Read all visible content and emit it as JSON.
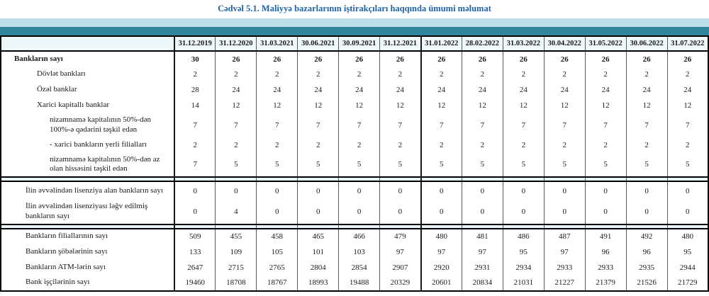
{
  "title": "Cədvəl 5.1. Maliyyə bazarlarının iştirakçıları haqqında ümumi məlumat",
  "colors": {
    "title_blue": "#2264a8",
    "band_light": "#bcdee8",
    "band_teal": "#31859c",
    "separator_band": "#e9f4f8"
  },
  "table": {
    "date_columns": [
      "31.12.2019",
      "31.12.2020",
      "31.03.2021",
      "30.06.2021",
      "30.09.2021",
      "31.12.2021",
      "31.01.2022",
      "28.02.2022",
      "31.03.2022",
      "30.04.2022",
      "31.05.2022",
      "30.06.2022",
      "31.07.2022"
    ],
    "rows": [
      {
        "label": "Bankların sayı",
        "indent": 0,
        "bold": true,
        "values": [
          "30",
          "26",
          "26",
          "26",
          "26",
          "26",
          "26",
          "26",
          "26",
          "26",
          "26",
          "26",
          "26"
        ]
      },
      {
        "label": "Dövlət bankları",
        "indent": 2,
        "values": [
          "2",
          "2",
          "2",
          "2",
          "2",
          "2",
          "2",
          "2",
          "2",
          "2",
          "2",
          "2",
          "2"
        ]
      },
      {
        "label": "Özəl banklar",
        "indent": 2,
        "values": [
          "28",
          "24",
          "24",
          "24",
          "24",
          "24",
          "24",
          "24",
          "24",
          "24",
          "24",
          "24",
          "24"
        ]
      },
      {
        "label": "Xarici kapitallı banklar",
        "indent": 2,
        "values": [
          "14",
          "12",
          "12",
          "12",
          "12",
          "12",
          "12",
          "12",
          "12",
          "12",
          "12",
          "12",
          "12"
        ]
      },
      {
        "label": "nizamnamə kapitalının 50%-dən 100%-ə qədərini təşkil edən",
        "indent": 3,
        "values": [
          "7",
          "7",
          "7",
          "7",
          "7",
          "7",
          "7",
          "7",
          "7",
          "7",
          "7",
          "7",
          "7"
        ]
      },
      {
        "label": "-  xarici bankların yerli filialları",
        "indent": 3,
        "values": [
          "2",
          "2",
          "2",
          "2",
          "2",
          "2",
          "2",
          "2",
          "2",
          "2",
          "2",
          "2",
          "2"
        ]
      },
      {
        "label": "nizamnamə kapitalının 50%-dən az olan hissəsini təşkil edən",
        "indent": 3,
        "values": [
          "7",
          "5",
          "5",
          "5",
          "5",
          "5",
          "5",
          "5",
          "5",
          "5",
          "5",
          "5",
          "5"
        ]
      },
      {
        "type": "separator"
      },
      {
        "label": "İlin əvvəlindən lisenziya alan bankların sayı",
        "indent": 1,
        "license": true,
        "values": [
          "0",
          "0",
          "0",
          "0",
          "0",
          "0",
          "0",
          "0",
          "0",
          "0",
          "0",
          "0",
          "0"
        ]
      },
      {
        "label": "İlin əvvəlindən lisenziyası ləğv edilmiş bankların sayı",
        "indent": 1,
        "license": true,
        "values": [
          "0",
          "4",
          "0",
          "0",
          "0",
          "0",
          "0",
          "0",
          "0",
          "0",
          "0",
          "0",
          "0"
        ]
      },
      {
        "type": "separator"
      },
      {
        "label": "Bankların filiallarının sayı",
        "indent": 1,
        "values": [
          "509",
          "455",
          "458",
          "465",
          "466",
          "479",
          "480",
          "481",
          "486",
          "487",
          "491",
          "492",
          "480"
        ]
      },
      {
        "label": "Bankların şöbələrinin sayı",
        "indent": 1,
        "values": [
          "133",
          "109",
          "105",
          "101",
          "103",
          "97",
          "97",
          "97",
          "95",
          "97",
          "96",
          "96",
          "95"
        ]
      },
      {
        "label": "Bankların ATM-lərin sayı",
        "indent": 1,
        "values": [
          "2647",
          "2715",
          "2765",
          "2804",
          "2854",
          "2907",
          "2920",
          "2931",
          "2934",
          "2933",
          "2933",
          "2935",
          "2944"
        ]
      },
      {
        "label": "Bank işçilərinin sayı",
        "indent": 1,
        "values": [
          "19460",
          "18708",
          "18767",
          "18993",
          "19488",
          "20329",
          "20601",
          "20834",
          "21031",
          "21227",
          "21379",
          "21526",
          "21729"
        ]
      }
    ]
  }
}
